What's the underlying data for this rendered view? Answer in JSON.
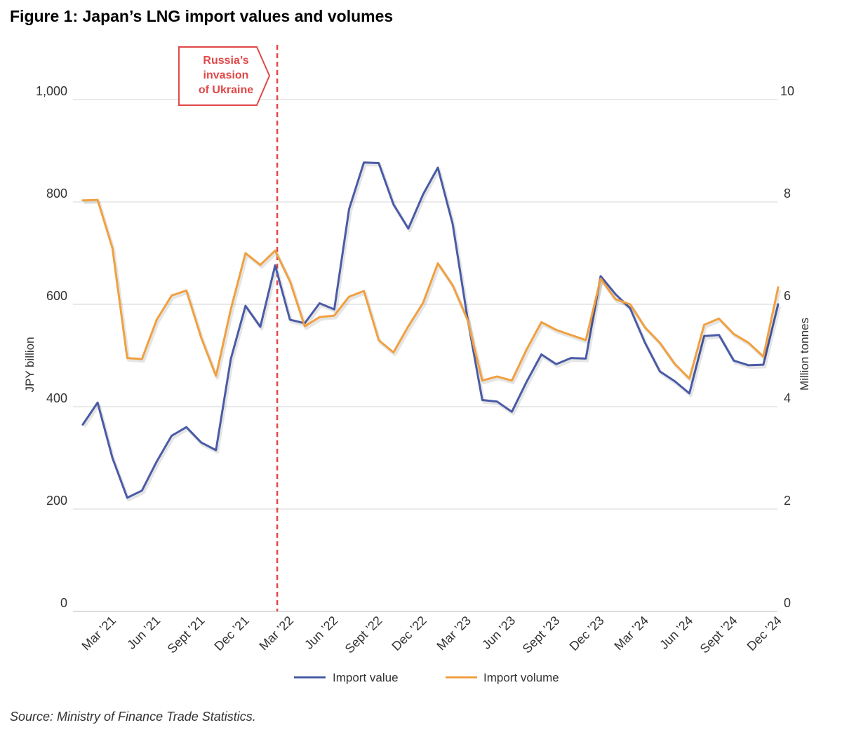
{
  "title": "Figure 1: Japan’s LNG import values and volumes",
  "source": "Source: Ministry of Finance Trade Statistics.",
  "chart_data": {
    "type": "line",
    "title": "Figure 1: Japan’s LNG import values and volumes",
    "ylabel": "JPY billion",
    "y2label": "Million tonnes",
    "ylim": [
      0,
      1000
    ],
    "y2lim": [
      0,
      10
    ],
    "yticks": [
      "0",
      "200",
      "400",
      "600",
      "800",
      "1,000"
    ],
    "y2ticks": [
      "0",
      "2",
      "4",
      "6",
      "8",
      "10"
    ],
    "xticks": [
      "Mar ’21",
      "Jun ’21",
      "Sept ’21",
      "Dec ’21",
      "Mar ’22",
      "Jun ’22",
      "Sept ’22",
      "Dec ’22",
      "Mar ’23",
      "Jun ’23",
      "Sept ’23",
      "Dec ’23",
      "Mar ’24",
      "Jun ’24",
      "Sept ’24",
      "Dec ’24"
    ],
    "x": [
      "Jan 2021",
      "Feb 2021",
      "Mar 2021",
      "Apr 2021",
      "May 2021",
      "Jun 2021",
      "Jul 2021",
      "Aug 2021",
      "Sep 2021",
      "Oct 2021",
      "Nov 2021",
      "Dec 2021",
      "Jan 2022",
      "Feb 2022",
      "Mar 2022",
      "Apr 2022",
      "May 2022",
      "Jun 2022",
      "Jul 2022",
      "Aug 2022",
      "Sep 2022",
      "Oct 2022",
      "Nov 2022",
      "Dec 2022",
      "Jan 2023",
      "Feb 2023",
      "Mar 2023",
      "Apr 2023",
      "May 2023",
      "Jun 2023",
      "Jul 2023",
      "Aug 2023",
      "Sep 2023",
      "Oct 2023",
      "Nov 2023",
      "Dec 2023",
      "Jan 2024",
      "Feb 2024",
      "Mar 2024",
      "Apr 2024",
      "May 2024",
      "Jun 2024",
      "Jul 2024",
      "Aug 2024",
      "Sep 2024",
      "Oct 2024",
      "Nov 2024",
      "Dec 2024"
    ],
    "series": [
      {
        "name": "Import value",
        "axis": "left",
        "color": "#4a5ba6",
        "values": [
          365,
          408,
          300,
          222,
          236,
          293,
          343,
          360,
          330,
          315,
          493,
          597,
          556,
          676,
          570,
          563,
          602,
          590,
          786,
          877,
          876,
          795,
          748,
          815,
          867,
          757,
          573,
          413,
          410,
          390,
          449,
          502,
          483,
          495,
          494,
          655,
          620,
          592,
          525,
          469,
          450,
          426,
          538,
          540,
          490,
          481,
          482,
          600
        ]
      },
      {
        "name": "Import volume",
        "axis": "right",
        "color": "#f0a040",
        "values": [
          8.03,
          8.04,
          7.1,
          4.95,
          4.93,
          5.7,
          6.17,
          6.27,
          5.35,
          4.6,
          5.9,
          7.0,
          6.77,
          7.05,
          6.45,
          5.57,
          5.75,
          5.78,
          6.15,
          6.26,
          5.3,
          5.06,
          5.57,
          6.03,
          6.8,
          6.37,
          5.7,
          4.51,
          4.59,
          4.51,
          5.12,
          5.65,
          5.5,
          5.4,
          5.3,
          6.5,
          6.1,
          6.0,
          5.55,
          5.25,
          4.84,
          4.55,
          5.6,
          5.72,
          5.42,
          5.25,
          4.98,
          6.33
        ]
      }
    ],
    "annotations": [
      {
        "x": "Feb 2022",
        "lines": [
          "Russia’s",
          "invasion",
          "of Ukraine"
        ],
        "color": "#e04848"
      }
    ],
    "legend": {
      "position": "bottom-center",
      "items": [
        "Import value",
        "Import volume"
      ]
    },
    "grid": true
  }
}
